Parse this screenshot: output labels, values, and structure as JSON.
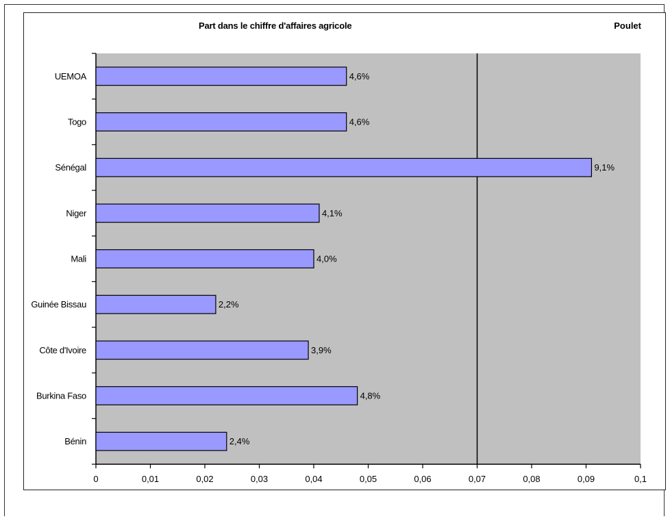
{
  "chart_data": {
    "type": "bar",
    "orientation": "horizontal",
    "title": "Part dans le chiffre d'affaires agricole",
    "product_label": "Poulet",
    "categories": [
      "UEMOA",
      "Togo",
      "Sénégal",
      "Niger",
      "Mali",
      "Guinée Bissau",
      "Côte d'Ivoire",
      "Burkina Faso",
      "Bénin"
    ],
    "values": [
      0.046,
      0.046,
      0.091,
      0.041,
      0.04,
      0.022,
      0.039,
      0.048,
      0.024
    ],
    "value_labels": [
      "4,6%",
      "4,6%",
      "9,1%",
      "4,1%",
      "4,0%",
      "2,2%",
      "3,9%",
      "4,8%",
      "2,4%"
    ],
    "xlim": [
      0,
      0.1
    ],
    "x_ticks": [
      "0",
      "0,01",
      "0,02",
      "0,03",
      "0,04",
      "0,05",
      "0,06",
      "0,07",
      "0,08",
      "0,09",
      "0,1"
    ],
    "x_tick_values": [
      0,
      0.01,
      0.02,
      0.03,
      0.04,
      0.05,
      0.06,
      0.07,
      0.08,
      0.09,
      0.1
    ],
    "reference_line": 0.07,
    "grid": false,
    "colors": {
      "bar_fill": "#9999ff",
      "bar_stroke": "#000000",
      "plot_background": "#c0c0c0"
    }
  }
}
